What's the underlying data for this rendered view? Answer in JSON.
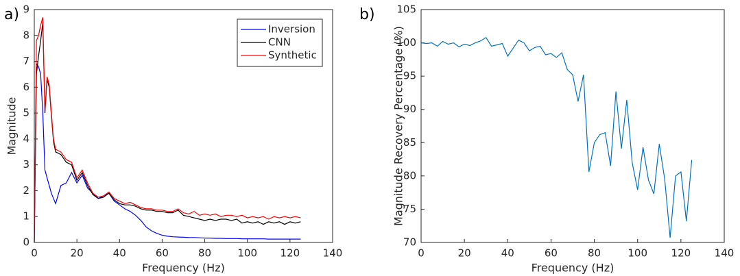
{
  "chart_data": [
    {
      "type": "line",
      "panel_label": "a)",
      "xlabel": "Frequency (Hz)",
      "ylabel": "Magnitude",
      "xlim": [
        0,
        140
      ],
      "ylim": [
        0,
        9
      ],
      "xticks": [
        0,
        20,
        40,
        60,
        80,
        100,
        120,
        140
      ],
      "yticks": [
        0,
        1,
        2,
        3,
        4,
        5,
        6,
        7,
        8,
        9
      ],
      "legend": "upper right",
      "box": true,
      "x": [
        0,
        1,
        2,
        3,
        4,
        5,
        6,
        7,
        8,
        9,
        10,
        12.5,
        15,
        17.5,
        20,
        22.5,
        25,
        27.5,
        30,
        32.5,
        35,
        37.5,
        40,
        42.5,
        45,
        47.5,
        50,
        52.5,
        55,
        57.5,
        60,
        62.5,
        65,
        67.5,
        70,
        72.5,
        75,
        77.5,
        80,
        82.5,
        85,
        87.5,
        90,
        92.5,
        95,
        97.5,
        100,
        102.5,
        105,
        107.5,
        110,
        112.5,
        115,
        117.5,
        120,
        122.5,
        125
      ],
      "series": [
        {
          "name": "Inversion",
          "color": "#0000ff",
          "values": [
            0,
            6.9,
            6.8,
            6.5,
            5.0,
            2.8,
            2.5,
            2.2,
            1.9,
            1.7,
            1.5,
            2.2,
            2.3,
            2.7,
            2.3,
            2.6,
            2.1,
            1.9,
            1.7,
            1.8,
            1.9,
            1.6,
            1.45,
            1.3,
            1.2,
            1.05,
            0.85,
            0.6,
            0.45,
            0.35,
            0.28,
            0.24,
            0.22,
            0.21,
            0.2,
            0.19,
            0.19,
            0.18,
            0.17,
            0.17,
            0.16,
            0.16,
            0.15,
            0.15,
            0.15,
            0.14,
            0.14,
            0.14,
            0.14,
            0.14,
            0.13,
            0.13,
            0.13,
            0.13,
            0.13,
            0.13,
            0.13
          ]
        },
        {
          "name": "CNN",
          "color": "#000000",
          "values": [
            0,
            6.5,
            7.2,
            7.8,
            8.5,
            5.0,
            6.3,
            6.0,
            4.9,
            3.9,
            3.5,
            3.4,
            3.1,
            3.0,
            2.4,
            2.7,
            2.2,
            1.85,
            1.7,
            1.75,
            1.9,
            1.65,
            1.5,
            1.45,
            1.45,
            1.4,
            1.3,
            1.25,
            1.25,
            1.2,
            1.2,
            1.15,
            1.15,
            1.25,
            1.05,
            1.0,
            0.95,
            0.9,
            0.85,
            0.9,
            0.85,
            0.9,
            0.9,
            0.85,
            0.9,
            0.75,
            0.8,
            0.75,
            0.8,
            0.7,
            0.8,
            0.75,
            0.8,
            0.7,
            0.8,
            0.75,
            0.8
          ]
        },
        {
          "name": "Synthetic",
          "color": "#ff0000",
          "values": [
            0,
            7.8,
            8.0,
            8.4,
            8.7,
            5.1,
            6.4,
            6.1,
            5.0,
            4.0,
            3.6,
            3.5,
            3.2,
            3.1,
            2.5,
            2.8,
            2.3,
            1.9,
            1.75,
            1.8,
            1.95,
            1.7,
            1.6,
            1.5,
            1.55,
            1.45,
            1.35,
            1.3,
            1.3,
            1.25,
            1.25,
            1.2,
            1.2,
            1.3,
            1.15,
            1.1,
            1.2,
            1.05,
            1.1,
            1.05,
            1.1,
            1.0,
            1.05,
            1.05,
            1.0,
            1.05,
            0.95,
            1.0,
            0.95,
            1.0,
            0.9,
            1.0,
            0.95,
            1.0,
            0.95,
            1.0,
            0.95
          ]
        }
      ]
    },
    {
      "type": "line",
      "panel_label": "b)",
      "xlabel": "Frequency (Hz)",
      "ylabel": "Magnitude Recovery Percentage (%)",
      "xlim": [
        0,
        140
      ],
      "ylim": [
        70,
        105
      ],
      "xticks": [
        0,
        20,
        40,
        60,
        80,
        100,
        120,
        140
      ],
      "yticks": [
        70,
        75,
        80,
        85,
        90,
        95,
        100,
        105
      ],
      "box": true,
      "x": [
        0,
        2.5,
        5,
        7.5,
        10,
        12.5,
        15,
        17.5,
        20,
        22.5,
        25,
        27.5,
        30,
        32.5,
        35,
        37.5,
        40,
        42.5,
        45,
        47.5,
        50,
        52.5,
        55,
        57.5,
        60,
        62.5,
        65,
        67.5,
        70,
        72.5,
        75,
        77.5,
        80,
        82.5,
        85,
        87.5,
        90,
        92.5,
        95,
        97.5,
        100,
        102.5,
        105,
        107.5,
        110,
        112.5,
        115,
        117.5,
        120,
        122.5,
        125
      ],
      "series": [
        {
          "color": "#0072bd",
          "values": [
            100,
            99.9,
            100,
            99.5,
            100.2,
            99.8,
            100,
            99.4,
            99.8,
            99.6,
            100,
            100.3,
            100.8,
            99.5,
            99.7,
            99.9,
            98,
            99.2,
            100.4,
            100,
            98.8,
            99.3,
            99.5,
            98.2,
            98.4,
            97.8,
            98.5,
            96,
            95.2,
            91.2,
            95.2,
            80.6,
            85,
            86.2,
            86.5,
            81.5,
            92.7,
            84.1,
            91.4,
            82,
            77.9,
            84.3,
            79.4,
            77.3,
            84.8,
            79.5,
            70.7,
            80,
            80.6,
            73.2,
            82.4
          ]
        }
      ]
    }
  ]
}
